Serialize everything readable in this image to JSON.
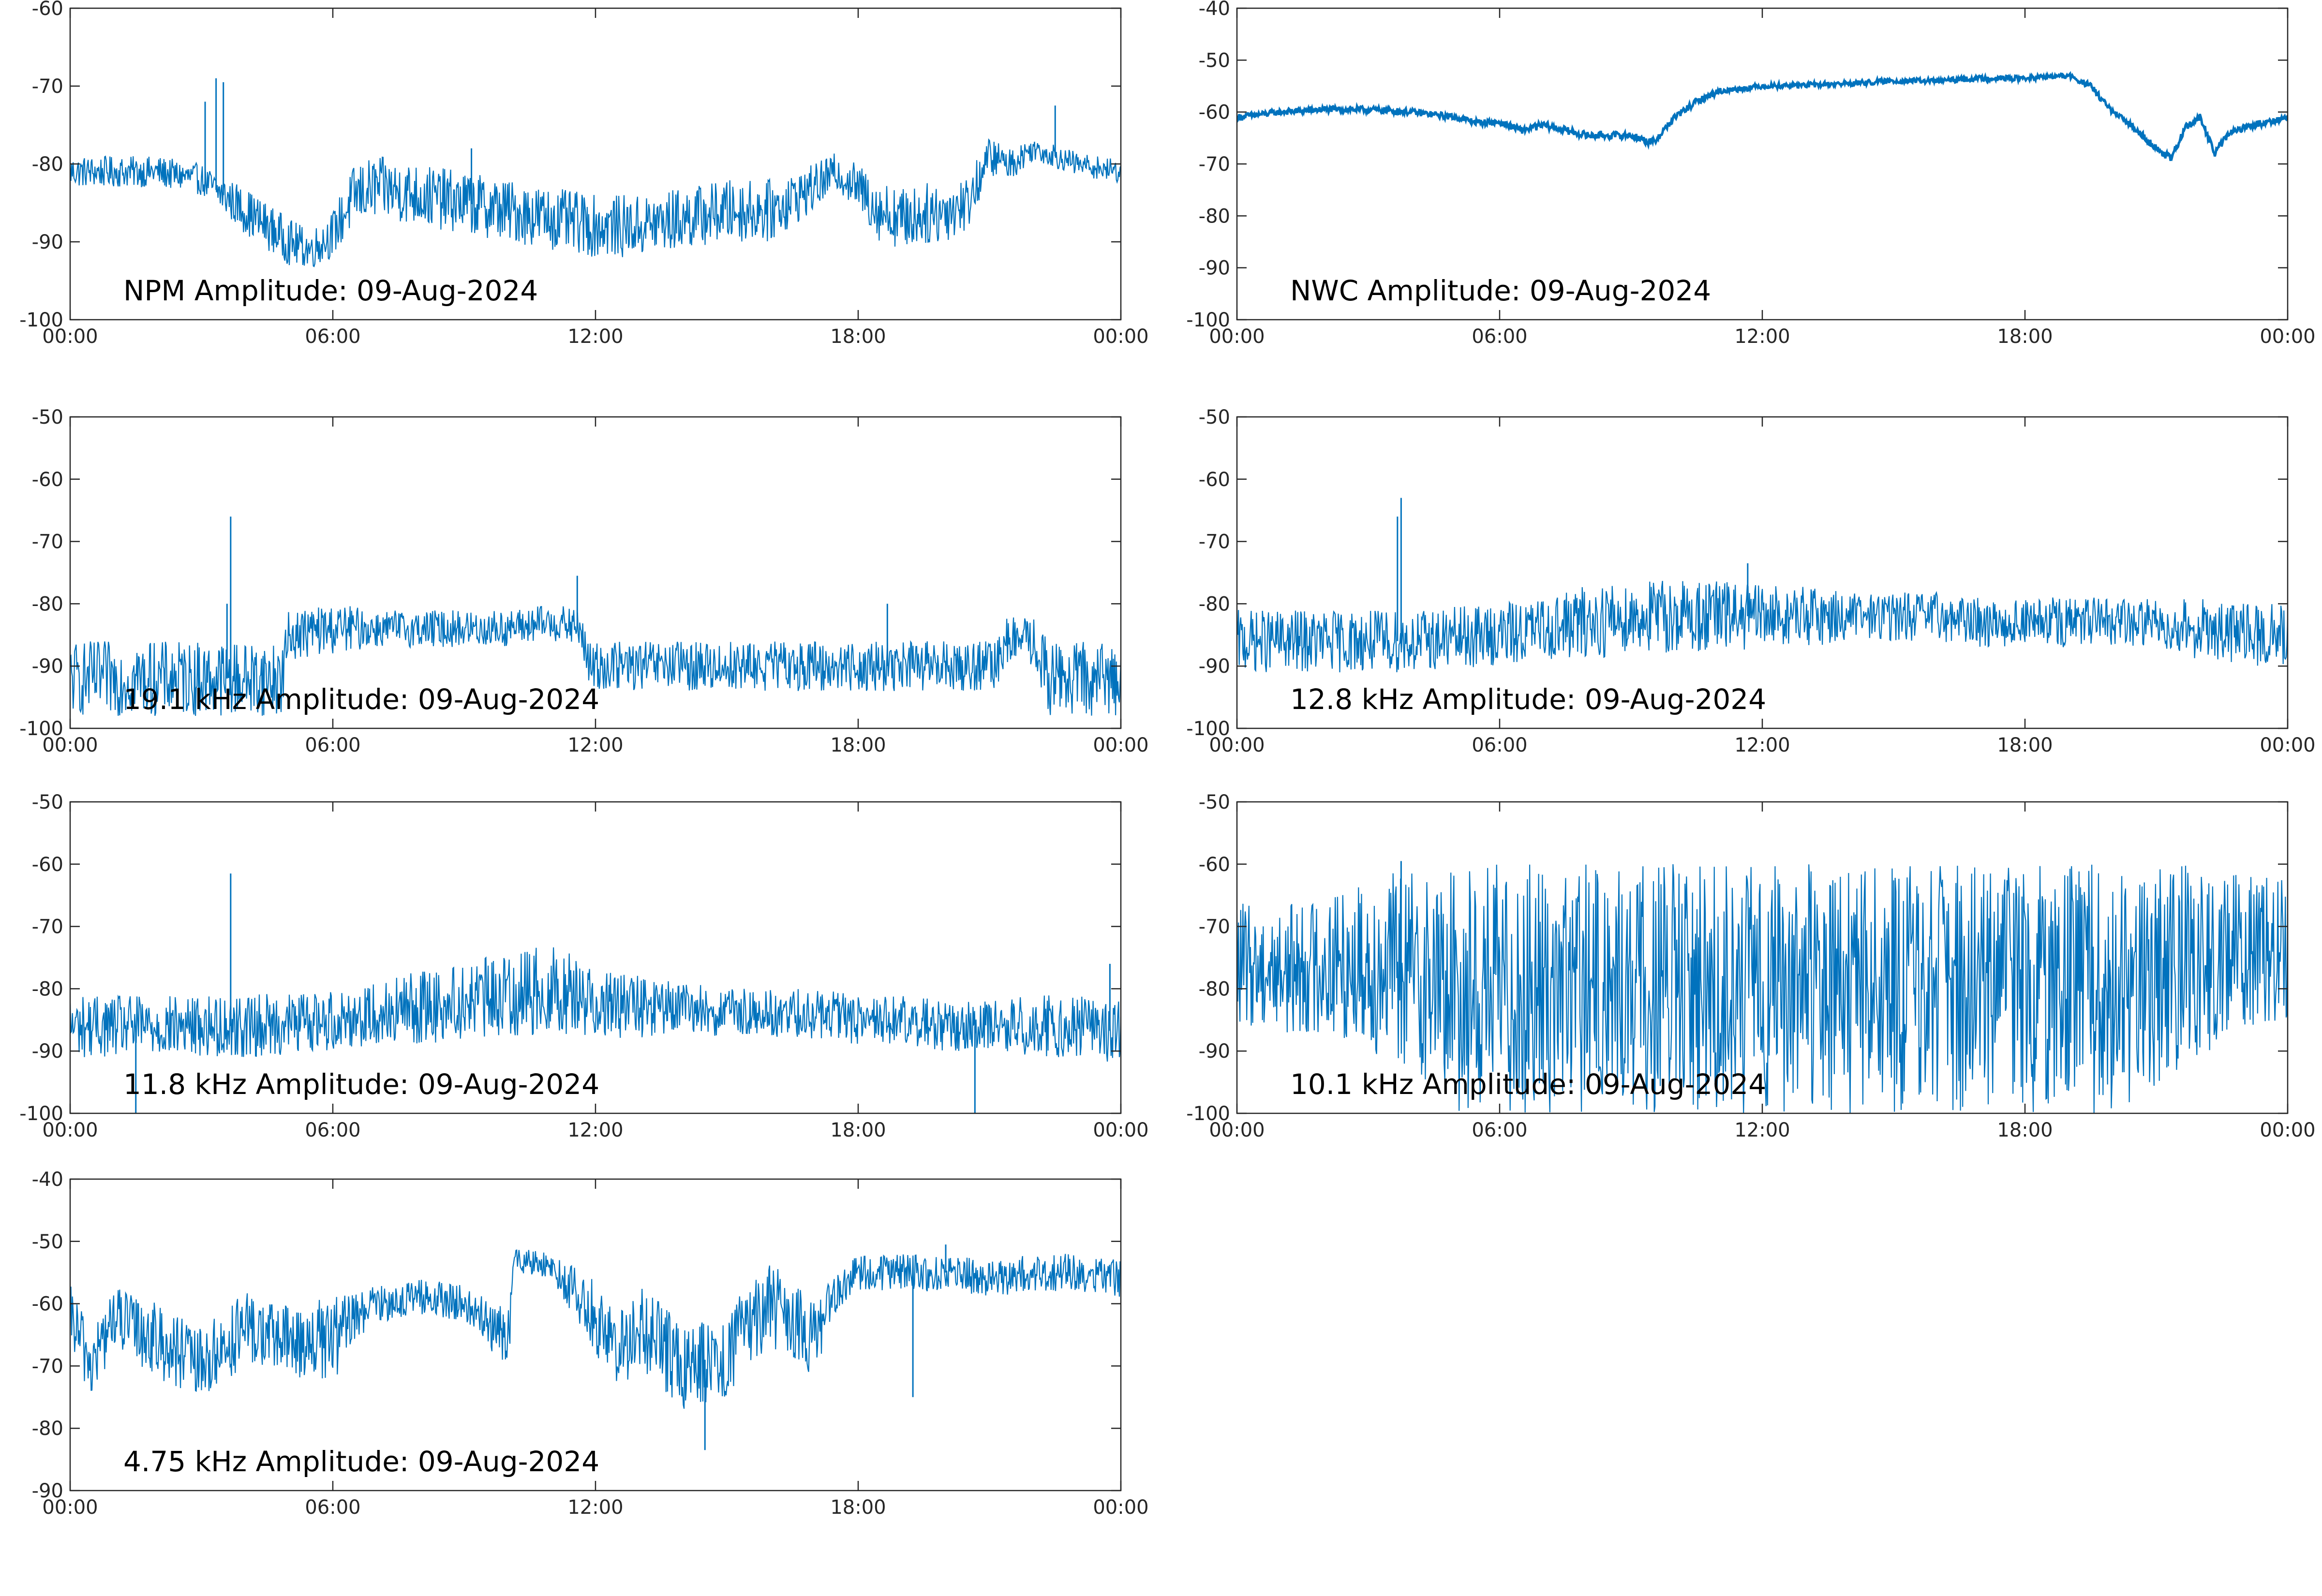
{
  "figure": {
    "line_color": "#0072BD",
    "axis_color": "#262626",
    "background": "#ffffff"
  },
  "chart_data": [
    {
      "type": "line",
      "title": "NPM Amplitude: 09-Aug-2024",
      "xlabel": "",
      "ylabel": "",
      "xlim": [
        "00:00",
        "24:00"
      ],
      "xtick_labels": [
        "00:00",
        "06:00",
        "12:00",
        "18:00",
        "00:00"
      ],
      "ylim": [
        -100,
        -60
      ],
      "ytick_labels": [
        "-100",
        "-90",
        "-80",
        "-70",
        "-60"
      ],
      "grid": false,
      "series": [
        {
          "x": [
            "00:00",
            "01:00",
            "02:00",
            "03:00",
            "03:30",
            "04:00",
            "05:00",
            "05:30",
            "06:00",
            "06:30",
            "07:00",
            "08:00",
            "09:00",
            "10:00",
            "11:00",
            "12:00",
            "13:00",
            "14:00",
            "15:00",
            "16:00",
            "17:00",
            "17:30",
            "18:00",
            "18:30",
            "19:00",
            "20:00",
            "20:30",
            "21:00",
            "21:30",
            "22:00",
            "23:00",
            "24:00"
          ],
          "y": [
            -81,
            -81,
            -81,
            -82,
            -84,
            -86,
            -90,
            -91,
            -89,
            -84,
            -83,
            -84,
            -85,
            -86,
            -87,
            -88,
            -88,
            -87,
            -86,
            -86,
            -83,
            -81,
            -83,
            -86,
            -87,
            -86,
            -85,
            -79,
            -80,
            -78,
            -80,
            -81
          ],
          "spread": [
            2,
            2,
            2,
            2,
            2.5,
            3,
            3,
            2.5,
            3,
            4,
            4,
            4,
            4,
            4,
            4,
            4,
            4,
            4,
            4,
            4,
            3,
            2.5,
            3,
            4,
            4,
            4,
            3.5,
            2.5,
            2,
            1.5,
            1.5,
            1.5
          ]
        }
      ],
      "spikes": [
        {
          "x": "03:20",
          "y": -69
        },
        {
          "x": "03:30",
          "y": -69.5
        },
        {
          "x": "03:05",
          "y": -72
        },
        {
          "x": "22:30",
          "y": -72.5
        },
        {
          "x": "09:10",
          "y": -78
        }
      ]
    },
    {
      "type": "line",
      "title": "NWC Amplitude: 09-Aug-2024",
      "xlabel": "",
      "ylabel": "",
      "xlim": [
        "00:00",
        "24:00"
      ],
      "xtick_labels": [
        "00:00",
        "06:00",
        "12:00",
        "18:00",
        "00:00"
      ],
      "ylim": [
        -100,
        -40
      ],
      "ytick_labels": [
        "-100",
        "-90",
        "-80",
        "-70",
        "-60",
        "-50",
        "-40"
      ],
      "grid": false,
      "series": [
        {
          "x": [
            "00:00",
            "01:00",
            "02:00",
            "03:00",
            "04:00",
            "05:00",
            "05:30",
            "06:00",
            "06:30",
            "07:00",
            "07:30",
            "08:00",
            "08:30",
            "09:00",
            "09:30",
            "10:00",
            "10:30",
            "11:00",
            "12:00",
            "13:00",
            "14:00",
            "15:00",
            "16:00",
            "17:00",
            "18:00",
            "19:00",
            "19:30",
            "20:00",
            "20:30",
            "21:00",
            "21:20",
            "21:40",
            "22:00",
            "22:20",
            "22:40",
            "23:00",
            "24:00"
          ],
          "y": [
            -61,
            -60,
            -59.5,
            -59.5,
            -60,
            -61,
            -62,
            -62,
            -63.5,
            -62.5,
            -63.5,
            -64.5,
            -64.5,
            -64.5,
            -66,
            -61,
            -58,
            -56,
            -55,
            -54.8,
            -54.5,
            -54,
            -54,
            -53.5,
            -53.5,
            -53,
            -55,
            -60,
            -63,
            -67,
            -69,
            -63,
            -61,
            -68,
            -64,
            -63,
            -61
          ],
          "spread": [
            0.6,
            0.6,
            0.6,
            0.6,
            0.6,
            0.6,
            0.6,
            0.6,
            0.7,
            0.7,
            0.7,
            0.7,
            0.7,
            0.7,
            0.8,
            0.7,
            0.6,
            0.6,
            0.5,
            0.5,
            0.5,
            0.5,
            0.5,
            0.5,
            0.5,
            0.5,
            0.6,
            0.6,
            0.6,
            0.7,
            0.7,
            0.7,
            0.7,
            0.7,
            0.6,
            0.6,
            0.6
          ]
        }
      ],
      "spikes": []
    },
    {
      "type": "line",
      "title": "19.1 kHz Amplitude: 09-Aug-2024",
      "xlabel": "",
      "ylabel": "",
      "xlim": [
        "00:00",
        "24:00"
      ],
      "xtick_labels": [
        "00:00",
        "06:00",
        "12:00",
        "18:00",
        "00:00"
      ],
      "ylim": [
        -100,
        -50
      ],
      "ytick_labels": [
        "-100",
        "-90",
        "-80",
        "-70",
        "-60",
        "-50"
      ],
      "grid": false,
      "series": [
        {
          "x": [
            "00:00",
            "01:00",
            "02:00",
            "03:00",
            "04:00",
            "04:50",
            "05:00",
            "06:00",
            "07:00",
            "08:00",
            "09:00",
            "10:00",
            "11:00",
            "11:40",
            "11:50",
            "12:00",
            "13:00",
            "14:00",
            "15:00",
            "16:00",
            "17:00",
            "18:00",
            "19:00",
            "20:00",
            "21:10",
            "21:20",
            "22:00",
            "22:20",
            "23:00",
            "24:00"
          ],
          "y": [
            -92,
            -92,
            -92,
            -92,
            -92,
            -92,
            -85,
            -84,
            -84,
            -84,
            -84,
            -84,
            -83,
            -84,
            -90,
            -90,
            -90,
            -90,
            -90,
            -90,
            -90,
            -90,
            -90,
            -90,
            -90,
            -86,
            -86,
            -92,
            -92,
            -92
          ],
          "spread": [
            6,
            6,
            6,
            6,
            6,
            6,
            4,
            4,
            3,
            3,
            3,
            3,
            3,
            3,
            4,
            4,
            4,
            4,
            4,
            4,
            4,
            4,
            4,
            4,
            4,
            4,
            4,
            6,
            6,
            6
          ]
        }
      ],
      "spikes": [
        {
          "x": "03:40",
          "y": -66
        },
        {
          "x": "03:35",
          "y": -80
        },
        {
          "x": "11:35",
          "y": -75.5
        },
        {
          "x": "18:40",
          "y": -80
        }
      ]
    },
    {
      "type": "line",
      "title": "12.8 kHz Amplitude: 09-Aug-2024",
      "xlabel": "",
      "ylabel": "",
      "xlim": [
        "00:00",
        "24:00"
      ],
      "xtick_labels": [
        "00:00",
        "06:00",
        "12:00",
        "18:00",
        "00:00"
      ],
      "ylim": [
        -100,
        -50
      ],
      "ytick_labels": [
        "-100",
        "-90",
        "-80",
        "-70",
        "-60",
        "-50"
      ],
      "grid": false,
      "series": [
        {
          "x": [
            "00:00",
            "02:00",
            "04:00",
            "06:00",
            "07:00",
            "08:00",
            "09:00",
            "10:00",
            "11:00",
            "12:00",
            "13:00",
            "14:00",
            "15:00",
            "16:00",
            "17:00",
            "18:00",
            "19:00",
            "20:00",
            "21:00",
            "22:00",
            "23:00",
            "24:00"
          ],
          "y": [
            -86,
            -86,
            -86,
            -85,
            -84,
            -83,
            -82,
            -82,
            -82,
            -82,
            -82,
            -82,
            -82,
            -82,
            -83,
            -83,
            -83,
            -83,
            -83,
            -84,
            -85,
            -85
          ],
          "spread": [
            5,
            5,
            5,
            5,
            5,
            6,
            6,
            6,
            6,
            5,
            5,
            4,
            4,
            4,
            4,
            4,
            4,
            4,
            4,
            5,
            5,
            5
          ]
        }
      ],
      "spikes": [
        {
          "x": "03:45",
          "y": -63
        },
        {
          "x": "03:40",
          "y": -66
        },
        {
          "x": "11:40",
          "y": -73.5
        }
      ]
    },
    {
      "type": "line",
      "title": "11.8 kHz Amplitude: 09-Aug-2024",
      "xlabel": "",
      "ylabel": "",
      "xlim": [
        "00:00",
        "24:00"
      ],
      "xtick_labels": [
        "00:00",
        "06:00",
        "12:00",
        "18:00",
        "00:00"
      ],
      "ylim": [
        -100,
        -50
      ],
      "ytick_labels": [
        "-100",
        "-90",
        "-80",
        "-70",
        "-60",
        "-50"
      ],
      "grid": false,
      "series": [
        {
          "x": [
            "00:00",
            "02:00",
            "04:00",
            "06:00",
            "07:00",
            "08:00",
            "09:00",
            "10:00",
            "11:00",
            "12:00",
            "13:00",
            "14:00",
            "15:00",
            "16:00",
            "17:00",
            "18:00",
            "19:00",
            "20:00",
            "21:00",
            "22:00",
            "23:00",
            "24:00"
          ],
          "y": [
            -86,
            -86,
            -86,
            -85,
            -84,
            -83,
            -82,
            -81,
            -80,
            -82,
            -83,
            -83,
            -84,
            -84,
            -84,
            -85,
            -85,
            -86,
            -86,
            -86,
            -86,
            -87
          ],
          "spread": [
            5,
            5,
            5,
            5,
            5,
            6,
            6,
            7,
            7,
            6,
            5,
            4,
            4,
            4,
            4,
            4,
            4,
            4,
            4,
            5,
            5,
            5
          ]
        }
      ],
      "spikes": [
        {
          "x": "03:40",
          "y": -61.5
        },
        {
          "x": "01:30",
          "y": -100
        },
        {
          "x": "20:40",
          "y": -100
        },
        {
          "x": "23:45",
          "y": -76
        }
      ]
    },
    {
      "type": "line",
      "title": "10.1 kHz Amplitude: 09-Aug-2024",
      "xlabel": "",
      "ylabel": "",
      "xlim": [
        "00:00",
        "24:00"
      ],
      "xtick_labels": [
        "00:00",
        "06:00",
        "12:00",
        "18:00",
        "00:00"
      ],
      "ylim": [
        -100,
        -50
      ],
      "ytick_labels": [
        "-100",
        "-90",
        "-80",
        "-70",
        "-60",
        "-50"
      ],
      "grid": false,
      "series": [
        {
          "x": [
            "00:00",
            "01:00",
            "02:00",
            "03:00",
            "04:00",
            "05:00",
            "06:00",
            "08:00",
            "10:00",
            "12:00",
            "14:00",
            "16:00",
            "18:00",
            "20:00",
            "21:00",
            "22:00",
            "23:00",
            "24:00"
          ],
          "y": [
            -76,
            -77,
            -76,
            -76,
            -77,
            -80,
            -80,
            -80,
            -80,
            -80,
            -80,
            -80,
            -80,
            -80,
            -78,
            -76,
            -74,
            -74
          ],
          "spread": [
            10,
            10,
            12,
            14,
            16,
            20,
            20,
            20,
            20,
            20,
            20,
            20,
            20,
            20,
            18,
            16,
            12,
            12
          ]
        }
      ],
      "spikes": [
        {
          "x": "03:45",
          "y": -59.5
        }
      ]
    },
    {
      "type": "line",
      "title": "4.75 kHz Amplitude: 09-Aug-2024",
      "xlabel": "",
      "ylabel": "",
      "xlim": [
        "00:00",
        "24:00"
      ],
      "xtick_labels": [
        "00:00",
        "06:00",
        "12:00",
        "18:00",
        "00:00"
      ],
      "ylim": [
        -90,
        -40
      ],
      "ytick_labels": [
        "-90",
        "-80",
        "-70",
        "-60",
        "-50",
        "-40"
      ],
      "grid": false,
      "series": [
        {
          "x": [
            "00:00",
            "00:30",
            "01:00",
            "02:00",
            "03:00",
            "04:00",
            "05:00",
            "06:00",
            "06:30",
            "07:00",
            "08:00",
            "09:00",
            "10:00",
            "10:10",
            "11:00",
            "12:00",
            "12:30",
            "13:00",
            "14:00",
            "15:00",
            "16:00",
            "17:00",
            "17:30",
            "18:00",
            "19:00",
            "20:00",
            "21:00",
            "22:00",
            "23:00",
            "24:00"
          ],
          "y": [
            -62,
            -70,
            -62,
            -66,
            -70,
            -64,
            -66,
            -66,
            -62,
            -60,
            -59,
            -60,
            -66,
            -53,
            -54,
            -62,
            -68,
            -64,
            -70,
            -68,
            -60,
            -66,
            -58,
            -55,
            -55,
            -55,
            -56,
            -55,
            -55,
            -56
          ],
          "spread": [
            5,
            6,
            5,
            6,
            6,
            6,
            6,
            7,
            4,
            3,
            3,
            3,
            5,
            2,
            2,
            6,
            6,
            7,
            7,
            7,
            7,
            6,
            3,
            3,
            3,
            3,
            3,
            3,
            3,
            3
          ]
        }
      ],
      "spikes": [
        {
          "x": "20:00",
          "y": -50.5
        },
        {
          "x": "14:30",
          "y": -83.5
        },
        {
          "x": "19:15",
          "y": -75
        }
      ]
    }
  ]
}
